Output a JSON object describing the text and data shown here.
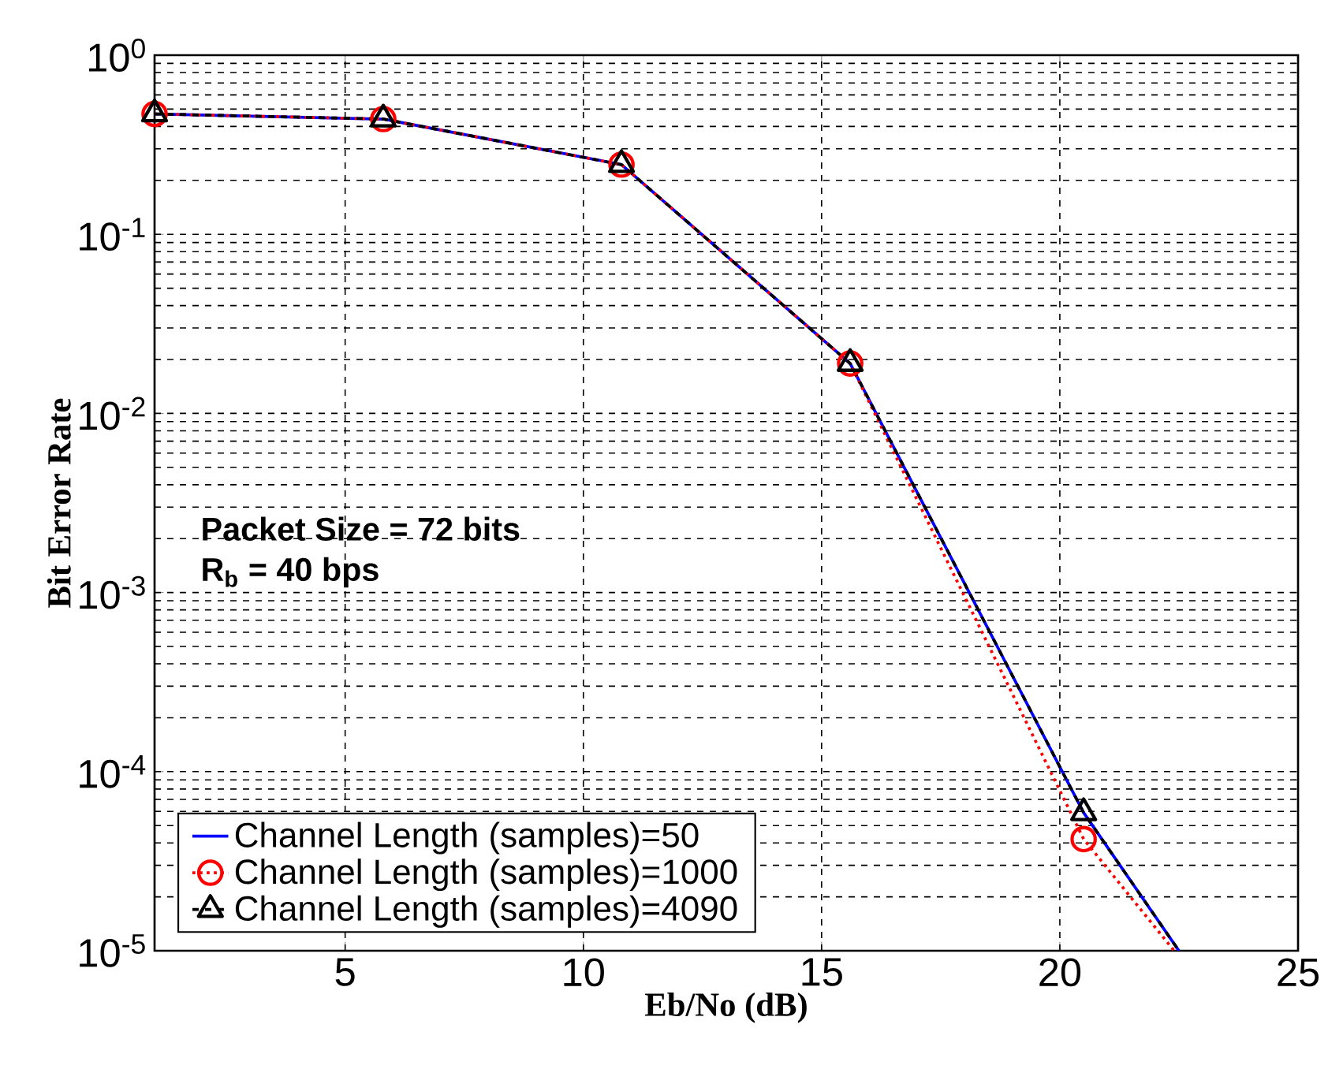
{
  "chart_data": {
    "type": "line",
    "xlabel": "Eb/No (dB)",
    "ylabel": "Bit Error Rate",
    "annotations": [
      "Packet Size =  72 bits",
      "R$_{b}$ = 40 bps"
    ],
    "series": [
      {
        "name": "Channel Length (samples)=50",
        "color": "#0000ff",
        "marker": "none",
        "line_style": "solid",
        "x": [
          1,
          5.8,
          10.8,
          15.6,
          20.5,
          22.5
        ],
        "values": [
          0.47,
          0.44,
          0.245,
          0.019,
          5.9e-05,
          1e-05
        ]
      },
      {
        "name": "Channel Length (samples)=1000",
        "color": "#ff0000",
        "marker": "circle",
        "line_style": "dotted",
        "x": [
          1,
          5.8,
          10.8,
          15.6,
          20.5,
          22.4
        ],
        "values": [
          0.47,
          0.44,
          0.245,
          0.019,
          4.2e-05,
          1e-05
        ]
      },
      {
        "name": "Channel Length (samples)=4090",
        "color": "#000000",
        "marker": "triangle",
        "line_style": "dashed",
        "x": [
          1,
          5.8,
          10.8,
          15.6,
          20.5,
          22.5
        ],
        "values": [
          0.47,
          0.44,
          0.245,
          0.019,
          5.9e-05,
          1e-05
        ]
      }
    ],
    "xlim": [
      1,
      25
    ],
    "ylim": [
      1e-05,
      1
    ],
    "xticks": [
      5,
      10,
      15,
      20,
      25
    ],
    "yticks": [
      {
        "value": 1e-05,
        "label": "10$^{-5}$"
      },
      {
        "value": 0.0001,
        "label": "10$^{-4}$"
      },
      {
        "value": 0.001,
        "label": "10$^{-3}$"
      },
      {
        "value": 0.01,
        "label": "10$^{-2}$"
      },
      {
        "value": 0.1,
        "label": "10$^{-1}$"
      },
      {
        "value": 1,
        "label": "10$^{0}$"
      }
    ],
    "log": "y",
    "grid": true,
    "legend": "bottom left"
  }
}
